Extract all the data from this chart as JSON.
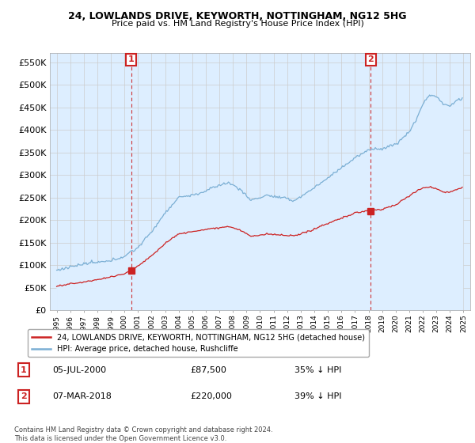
{
  "title": "24, LOWLANDS DRIVE, KEYWORTH, NOTTINGHAM, NG12 5HG",
  "subtitle": "Price paid vs. HM Land Registry's House Price Index (HPI)",
  "legend_line1": "24, LOWLANDS DRIVE, KEYWORTH, NOTTINGHAM, NG12 5HG (detached house)",
  "legend_line2": "HPI: Average price, detached house, Rushcliffe",
  "footnote": "Contains HM Land Registry data © Crown copyright and database right 2024.\nThis data is licensed under the Open Government Licence v3.0.",
  "sale1_label": "1",
  "sale1_date": "05-JUL-2000",
  "sale1_price": "£87,500",
  "sale1_hpi": "35% ↓ HPI",
  "sale2_label": "2",
  "sale2_date": "07-MAR-2018",
  "sale2_price": "£220,000",
  "sale2_hpi": "39% ↓ HPI",
  "hpi_color": "#7bafd4",
  "hpi_fill_color": "#ddeeff",
  "price_color": "#cc2222",
  "marker1_x": 2000.5,
  "marker1_y": 87500,
  "marker2_x": 2018.17,
  "marker2_y": 220000,
  "vline1_x": 2000.5,
  "vline2_x": 2018.17,
  "ylim_min": 0,
  "ylim_max": 570000,
  "yticks": [
    0,
    50000,
    100000,
    150000,
    200000,
    250000,
    300000,
    350000,
    400000,
    450000,
    500000,
    550000
  ],
  "xlim_min": 1994.5,
  "xlim_max": 2025.5,
  "background_color": "#ffffff",
  "grid_color": "#cccccc"
}
